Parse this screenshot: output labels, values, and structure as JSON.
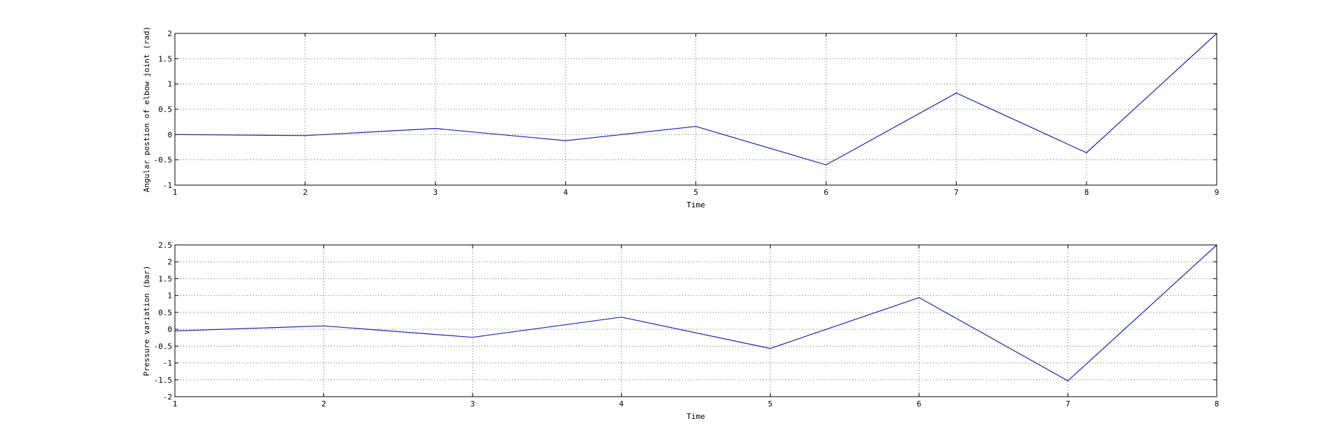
{
  "chart_data": [
    {
      "type": "line",
      "xlabel": "Time",
      "ylabel": "Angular postion of elbow joint (rad)",
      "xlim": [
        1,
        9
      ],
      "ylim": [
        -1,
        2
      ],
      "xticks": [
        "1",
        "2",
        "3",
        "4",
        "5",
        "6",
        "7",
        "8",
        "9"
      ],
      "yticks": [
        "-1",
        "-0.5",
        "0",
        "0.5",
        "1",
        "1.5",
        "2"
      ],
      "grid": true,
      "series": [
        {
          "color": "#1f1fb4",
          "x": [
            1,
            2,
            3,
            4,
            5,
            6,
            7,
            8,
            9
          ],
          "y": [
            0,
            -0.02,
            0.12,
            -0.12,
            0.16,
            -0.6,
            0.82,
            -0.36,
            2.0
          ]
        }
      ]
    },
    {
      "type": "line",
      "xlabel": "Time",
      "ylabel": "Pressure variation (bar)",
      "xlim": [
        1,
        8
      ],
      "ylim": [
        -2,
        2.5
      ],
      "xticks": [
        "1",
        "2",
        "3",
        "4",
        "5",
        "6",
        "7",
        "8"
      ],
      "yticks": [
        "-2",
        "-1.5",
        "-1",
        "-0.5",
        "0",
        "0.5",
        "1",
        "1.5",
        "2",
        "2.5"
      ],
      "grid": true,
      "series": [
        {
          "color": "#1f1fb4",
          "x": [
            1,
            2,
            3,
            4,
            5,
            6,
            7,
            8
          ],
          "y": [
            -0.05,
            0.1,
            -0.24,
            0.36,
            -0.57,
            0.94,
            -1.53,
            2.5
          ]
        }
      ]
    }
  ]
}
